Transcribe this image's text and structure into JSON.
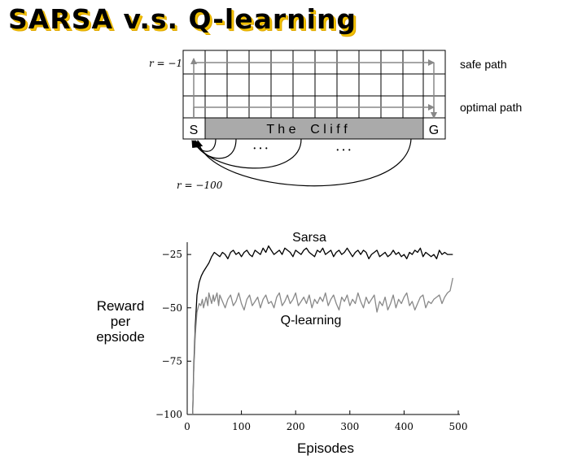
{
  "slide": {
    "title": "SARSA v.s. Q-learning"
  },
  "gridworld": {
    "r_step_label": "r = −1",
    "r_cliff_label": "r = −100",
    "safe_path_label": "safe path",
    "optimal_path_label": "optimal path",
    "start_label": "S",
    "goal_label": "G",
    "cliff_label": "T h e    C l i f f",
    "ellipsis": "•  •  •"
  },
  "chart_data": {
    "type": "line",
    "xlabel": "Episodes",
    "ylabel": "Reward\nper\nepsiode",
    "xlim": [
      0,
      500
    ],
    "ylim": [
      -100,
      -20
    ],
    "xticks": [
      "0",
      "100",
      "200",
      "300",
      "400",
      "500"
    ],
    "yticks": [
      "−25",
      "−50",
      "−75",
      "−100"
    ],
    "grid": false,
    "series": [
      {
        "name": "Sarsa",
        "color": "#000000",
        "x": [
          10,
          12,
          15,
          18,
          22,
          26,
          30,
          35,
          40,
          45,
          50,
          55,
          60,
          65,
          70,
          75,
          80,
          85,
          90,
          95,
          100,
          105,
          110,
          115,
          120,
          125,
          130,
          135,
          140,
          145,
          150,
          155,
          160,
          165,
          170,
          175,
          180,
          185,
          190,
          195,
          200,
          205,
          210,
          215,
          220,
          225,
          230,
          235,
          240,
          245,
          250,
          255,
          260,
          265,
          270,
          275,
          280,
          285,
          290,
          295,
          300,
          305,
          310,
          315,
          320,
          325,
          330,
          335,
          340,
          345,
          350,
          355,
          360,
          365,
          370,
          375,
          380,
          385,
          390,
          395,
          400,
          405,
          410,
          415,
          420,
          425,
          430,
          435,
          440,
          445,
          450,
          455,
          460,
          465,
          470,
          475,
          480,
          485,
          490
        ],
        "y": [
          -100,
          -78,
          -58,
          -44,
          -38,
          -35,
          -33,
          -31,
          -29,
          -26,
          -24,
          -25,
          -26,
          -24,
          -25,
          -27,
          -24,
          -23,
          -25,
          -24,
          -26,
          -24,
          -23,
          -25,
          -26,
          -23,
          -24,
          -25,
          -22,
          -24,
          -21,
          -23,
          -25,
          -24,
          -23,
          -25,
          -22,
          -23,
          -24,
          -26,
          -23,
          -24,
          -25,
          -23,
          -22,
          -24,
          -25,
          -26,
          -23,
          -24,
          -22,
          -25,
          -24,
          -23,
          -26,
          -24,
          -23,
          -25,
          -24,
          -22,
          -24,
          -26,
          -24,
          -23,
          -25,
          -23,
          -24,
          -27,
          -25,
          -24,
          -23,
          -26,
          -25,
          -24,
          -26,
          -25,
          -23,
          -25,
          -24,
          -26,
          -25,
          -27,
          -24,
          -25,
          -23,
          -24,
          -22,
          -26,
          -24,
          -25,
          -26,
          -25,
          -27,
          -23,
          -25,
          -24,
          -25,
          -25,
          -25
        ]
      },
      {
        "name": "Q-learning",
        "color": "#888888",
        "x": [
          10,
          12,
          15,
          18,
          22,
          25,
          28,
          30,
          33,
          35,
          38,
          40,
          43,
          45,
          48,
          50,
          55,
          58,
          60,
          65,
          70,
          75,
          80,
          85,
          90,
          95,
          100,
          105,
          110,
          115,
          120,
          125,
          130,
          135,
          140,
          145,
          150,
          155,
          160,
          165,
          170,
          175,
          180,
          185,
          190,
          195,
          200,
          205,
          210,
          215,
          220,
          225,
          230,
          235,
          240,
          245,
          250,
          255,
          260,
          265,
          270,
          275,
          280,
          285,
          290,
          295,
          300,
          305,
          310,
          315,
          320,
          325,
          330,
          335,
          340,
          345,
          350,
          355,
          360,
          365,
          370,
          375,
          380,
          385,
          390,
          395,
          400,
          405,
          410,
          415,
          420,
          425,
          430,
          435,
          440,
          445,
          450,
          455,
          460,
          465,
          470,
          475,
          480,
          485,
          490
        ],
        "y": [
          -100,
          -80,
          -62,
          -52,
          -48,
          -49,
          -46,
          -50,
          -47,
          -45,
          -49,
          -43,
          -46,
          -48,
          -44,
          -47,
          -43,
          -49,
          -44,
          -47,
          -50,
          -46,
          -44,
          -49,
          -47,
          -43,
          -48,
          -51,
          -46,
          -44,
          -49,
          -47,
          -45,
          -50,
          -46,
          -44,
          -48,
          -47,
          -50,
          -45,
          -43,
          -49,
          -47,
          -44,
          -48,
          -46,
          -43,
          -49,
          -47,
          -45,
          -48,
          -44,
          -50,
          -46,
          -48,
          -45,
          -47,
          -43,
          -49,
          -46,
          -44,
          -48,
          -51,
          -45,
          -47,
          -44,
          -49,
          -46,
          -48,
          -43,
          -47,
          -50,
          -45,
          -48,
          -46,
          -44,
          -52,
          -47,
          -49,
          -45,
          -51,
          -48,
          -44,
          -50,
          -46,
          -48,
          -45,
          -43,
          -49,
          -47,
          -51,
          -48,
          -45,
          -44,
          -50,
          -47,
          -48,
          -46,
          -45,
          -44,
          -48,
          -45,
          -43,
          -42,
          -36
        ]
      }
    ]
  }
}
